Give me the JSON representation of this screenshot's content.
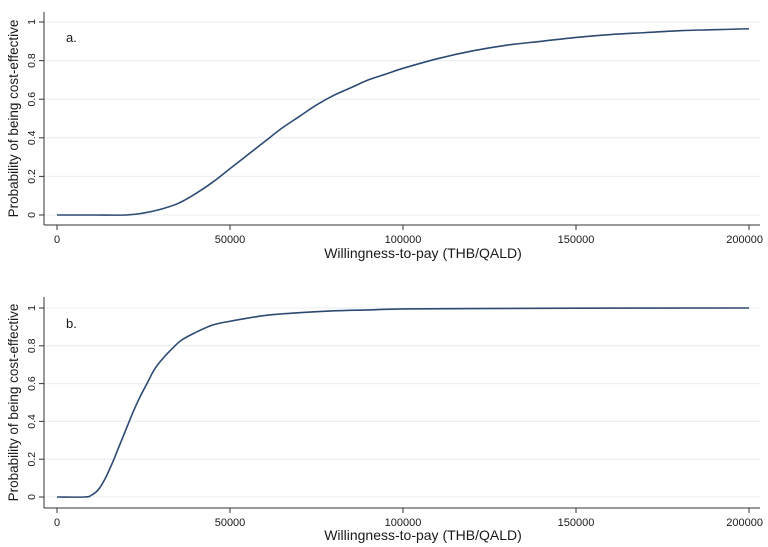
{
  "chart_data": [
    {
      "type": "line",
      "panel_label": "a.",
      "xlabel": "Willingness-to-pay (THB/QALD)",
      "ylabel": "Probability of being cost-effective",
      "xlim": [
        0,
        200000
      ],
      "ylim": [
        0,
        1
      ],
      "x_ticks": [
        0,
        50000,
        100000,
        150000,
        200000
      ],
      "y_ticks": [
        0,
        0.2,
        0.4,
        0.6,
        0.8,
        1
      ],
      "grid": "horizontal",
      "series": [
        {
          "color": "#2d4a73",
          "x": [
            0,
            10000,
            20000,
            25000,
            30000,
            35000,
            40000,
            45000,
            50000,
            55000,
            60000,
            65000,
            70000,
            75000,
            80000,
            85000,
            90000,
            95000,
            100000,
            110000,
            120000,
            130000,
            140000,
            150000,
            160000,
            170000,
            180000,
            190000,
            200000
          ],
          "y": [
            0,
            0,
            0,
            0.01,
            0.03,
            0.06,
            0.11,
            0.17,
            0.24,
            0.31,
            0.38,
            0.45,
            0.51,
            0.57,
            0.62,
            0.66,
            0.7,
            0.73,
            0.76,
            0.81,
            0.85,
            0.88,
            0.9,
            0.92,
            0.935,
            0.945,
            0.955,
            0.96,
            0.965
          ]
        }
      ]
    },
    {
      "type": "line",
      "panel_label": "b.",
      "xlabel": "Willingness-to-pay (THB/QALD)",
      "ylabel": "Probability of being cost-effective",
      "xlim": [
        0,
        200000
      ],
      "ylim": [
        0,
        1
      ],
      "x_ticks": [
        0,
        50000,
        100000,
        150000,
        200000
      ],
      "y_ticks": [
        0,
        0.2,
        0.4,
        0.6,
        0.8,
        1
      ],
      "grid": "horizontal",
      "series": [
        {
          "color": "#2d4a73",
          "x": [
            0,
            8000,
            10000,
            12000,
            14000,
            16000,
            18000,
            20000,
            22000,
            24000,
            26000,
            28000,
            30000,
            33000,
            36000,
            40000,
            45000,
            50000,
            60000,
            70000,
            80000,
            90000,
            100000,
            120000,
            150000,
            200000
          ],
          "y": [
            0,
            0,
            0.01,
            0.04,
            0.1,
            0.18,
            0.27,
            0.36,
            0.45,
            0.53,
            0.6,
            0.67,
            0.72,
            0.78,
            0.83,
            0.87,
            0.91,
            0.93,
            0.96,
            0.975,
            0.985,
            0.99,
            0.995,
            0.997,
            0.999,
            1.0
          ]
        }
      ]
    }
  ]
}
